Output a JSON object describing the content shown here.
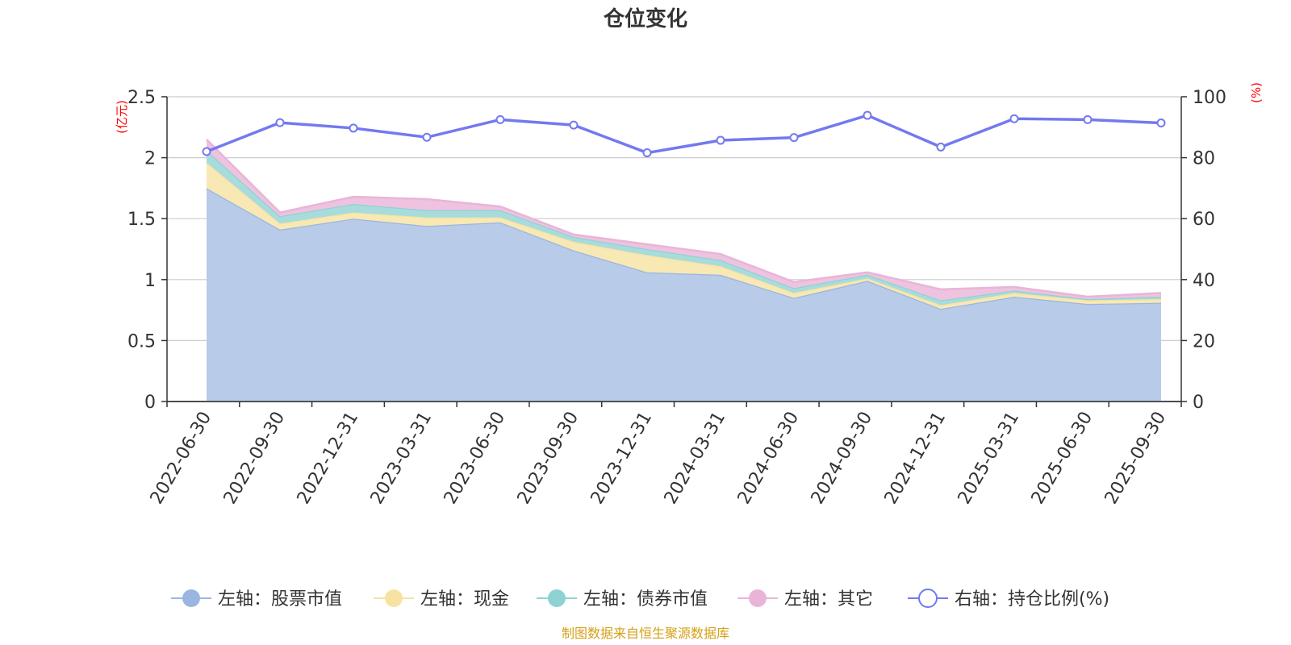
{
  "chart_data": {
    "type": "area",
    "title": "仓位变化",
    "categories": [
      "2022-06-30",
      "2022-09-30",
      "2022-12-31",
      "2023-03-31",
      "2023-06-30",
      "2023-09-30",
      "2023-12-31",
      "2024-03-31",
      "2024-06-30",
      "2024-09-30",
      "2024-12-31",
      "2025-03-31",
      "2025-06-30",
      "2025-09-30"
    ],
    "left_axis": {
      "unit": "(亿元)",
      "ylim": [
        0,
        2.5
      ],
      "ticks": [
        "0",
        "0.5",
        "1",
        "1.5",
        "2",
        "2.5"
      ],
      "tick_values": [
        0,
        0.5,
        1,
        1.5,
        2,
        2.5
      ]
    },
    "right_axis": {
      "unit": "(%)",
      "ylim": [
        0,
        100
      ],
      "ticks": [
        "0",
        "20",
        "40",
        "60",
        "80",
        "100"
      ],
      "tick_values": [
        0,
        20,
        40,
        60,
        80,
        100
      ]
    },
    "series": [
      {
        "name": "左轴：股票市值",
        "axis": "left",
        "color": "#9ab6e0",
        "fill": "#b8cbe8",
        "values": [
          1.75,
          1.41,
          1.5,
          1.44,
          1.47,
          1.24,
          1.06,
          1.04,
          0.85,
          0.99,
          0.76,
          0.86,
          0.8,
          0.81
        ]
      },
      {
        "name": "左轴：现金",
        "axis": "left",
        "color": "#f7e3a1",
        "fill": "#f8e8b4",
        "values": [
          0.21,
          0.05,
          0.05,
          0.07,
          0.04,
          0.07,
          0.14,
          0.07,
          0.04,
          0.02,
          0.03,
          0.03,
          0.03,
          0.03
        ]
      },
      {
        "name": "左轴：债券市值",
        "axis": "left",
        "color": "#8fd2d4",
        "fill": "#a8dcdc",
        "values": [
          0.1,
          0.06,
          0.07,
          0.06,
          0.06,
          0.04,
          0.05,
          0.05,
          0.04,
          0.03,
          0.04,
          0.02,
          0.01,
          0.02
        ]
      },
      {
        "name": "左轴：其它",
        "axis": "left",
        "color": "#e8b5d8",
        "fill": "#eec3df",
        "values": [
          0.09,
          0.03,
          0.06,
          0.09,
          0.03,
          0.02,
          0.04,
          0.05,
          0.05,
          0.02,
          0.09,
          0.03,
          0.02,
          0.03
        ]
      },
      {
        "name": "右轴：持仓比例(%)",
        "axis": "right",
        "color": "#7379ef",
        "values": [
          82,
          91.5,
          89.7,
          86.7,
          92.5,
          90.7,
          81.6,
          85.7,
          86.6,
          93.9,
          83.5,
          92.8,
          92.5,
          91.4
        ]
      }
    ],
    "source": "制图数据来自恒生聚源数据库"
  }
}
